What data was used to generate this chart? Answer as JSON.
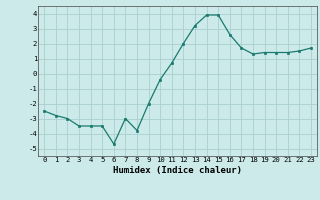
{
  "x": [
    0,
    1,
    2,
    3,
    4,
    5,
    6,
    7,
    8,
    9,
    10,
    11,
    12,
    13,
    14,
    15,
    16,
    17,
    18,
    19,
    20,
    21,
    22,
    23
  ],
  "y": [
    -2.5,
    -2.8,
    -3.0,
    -3.5,
    -3.5,
    -3.5,
    -4.7,
    -3.0,
    -3.8,
    -2.0,
    -0.4,
    0.7,
    2.0,
    3.2,
    3.9,
    3.9,
    2.6,
    1.7,
    1.3,
    1.4,
    1.4,
    1.4,
    1.5,
    1.7
  ],
  "line_color": "#1a7a6e",
  "marker": "s",
  "marker_size": 2.0,
  "bg_color": "#cceaea",
  "grid_color": "#aacece",
  "xlabel": "Humidex (Indice chaleur)",
  "xlim": [
    -0.5,
    23.5
  ],
  "ylim": [
    -5.5,
    4.5
  ],
  "yticks": [
    -5,
    -4,
    -3,
    -2,
    -1,
    0,
    1,
    2,
    3,
    4
  ],
  "xticks": [
    0,
    1,
    2,
    3,
    4,
    5,
    6,
    7,
    8,
    9,
    10,
    11,
    12,
    13,
    14,
    15,
    16,
    17,
    18,
    19,
    20,
    21,
    22,
    23
  ],
  "tick_fontsize": 5.2,
  "xlabel_fontsize": 6.5
}
